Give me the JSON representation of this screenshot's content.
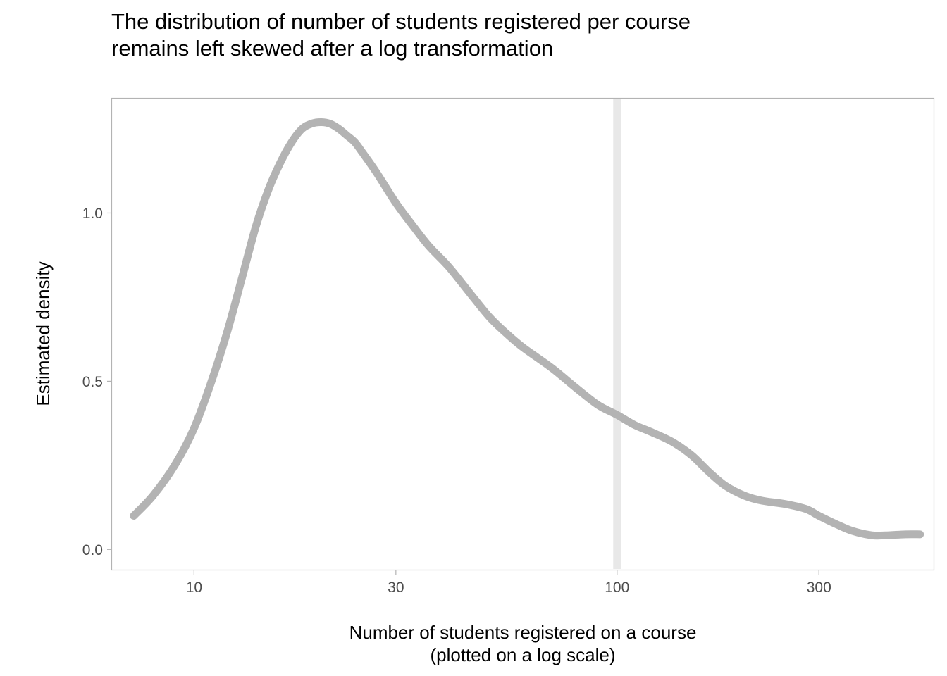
{
  "chart_data": {
    "type": "line",
    "title": [
      "The distribution of number of students registered per course",
      "remains left skewed after a log transformation"
    ],
    "xlabel": [
      "Number of students registered on a course",
      "(plotted on a log scale)"
    ],
    "ylabel": "Estimated density",
    "x_scale": "log10",
    "xlim": [
      6.4,
      560
    ],
    "ylim": [
      -0.06,
      1.34
    ],
    "x_ticks": [
      10,
      30,
      100,
      300
    ],
    "x_tick_labels": [
      "10",
      "30",
      "100",
      "300"
    ],
    "y_ticks": [
      0.0,
      0.5,
      1.0
    ],
    "y_tick_labels": [
      "0.0",
      "0.5",
      "1.0"
    ],
    "grid": false,
    "reference_line": {
      "axis": "x",
      "value": 100,
      "color": "#e8e8e8"
    },
    "series": [
      {
        "color": "#b3b3b3",
        "x": [
          7.2,
          8,
          9,
          10,
          11,
          12,
          13,
          14,
          15,
          16,
          17,
          18,
          19,
          20,
          21,
          22,
          23,
          24,
          25,
          27,
          30,
          33,
          36,
          40,
          45,
          50,
          55,
          60,
          70,
          80,
          90,
          100,
          110,
          120,
          135,
          150,
          165,
          180,
          200,
          220,
          250,
          280,
          300,
          330,
          360,
          400,
          430,
          480,
          520
        ],
        "y": [
          0.1,
          0.16,
          0.25,
          0.36,
          0.5,
          0.65,
          0.81,
          0.96,
          1.07,
          1.15,
          1.21,
          1.25,
          1.266,
          1.27,
          1.265,
          1.25,
          1.23,
          1.21,
          1.18,
          1.12,
          1.03,
          0.96,
          0.9,
          0.84,
          0.76,
          0.69,
          0.64,
          0.6,
          0.54,
          0.48,
          0.43,
          0.4,
          0.37,
          0.35,
          0.32,
          0.28,
          0.23,
          0.19,
          0.16,
          0.145,
          0.135,
          0.12,
          0.1,
          0.075,
          0.055,
          0.042,
          0.042,
          0.045,
          0.045
        ]
      }
    ]
  }
}
